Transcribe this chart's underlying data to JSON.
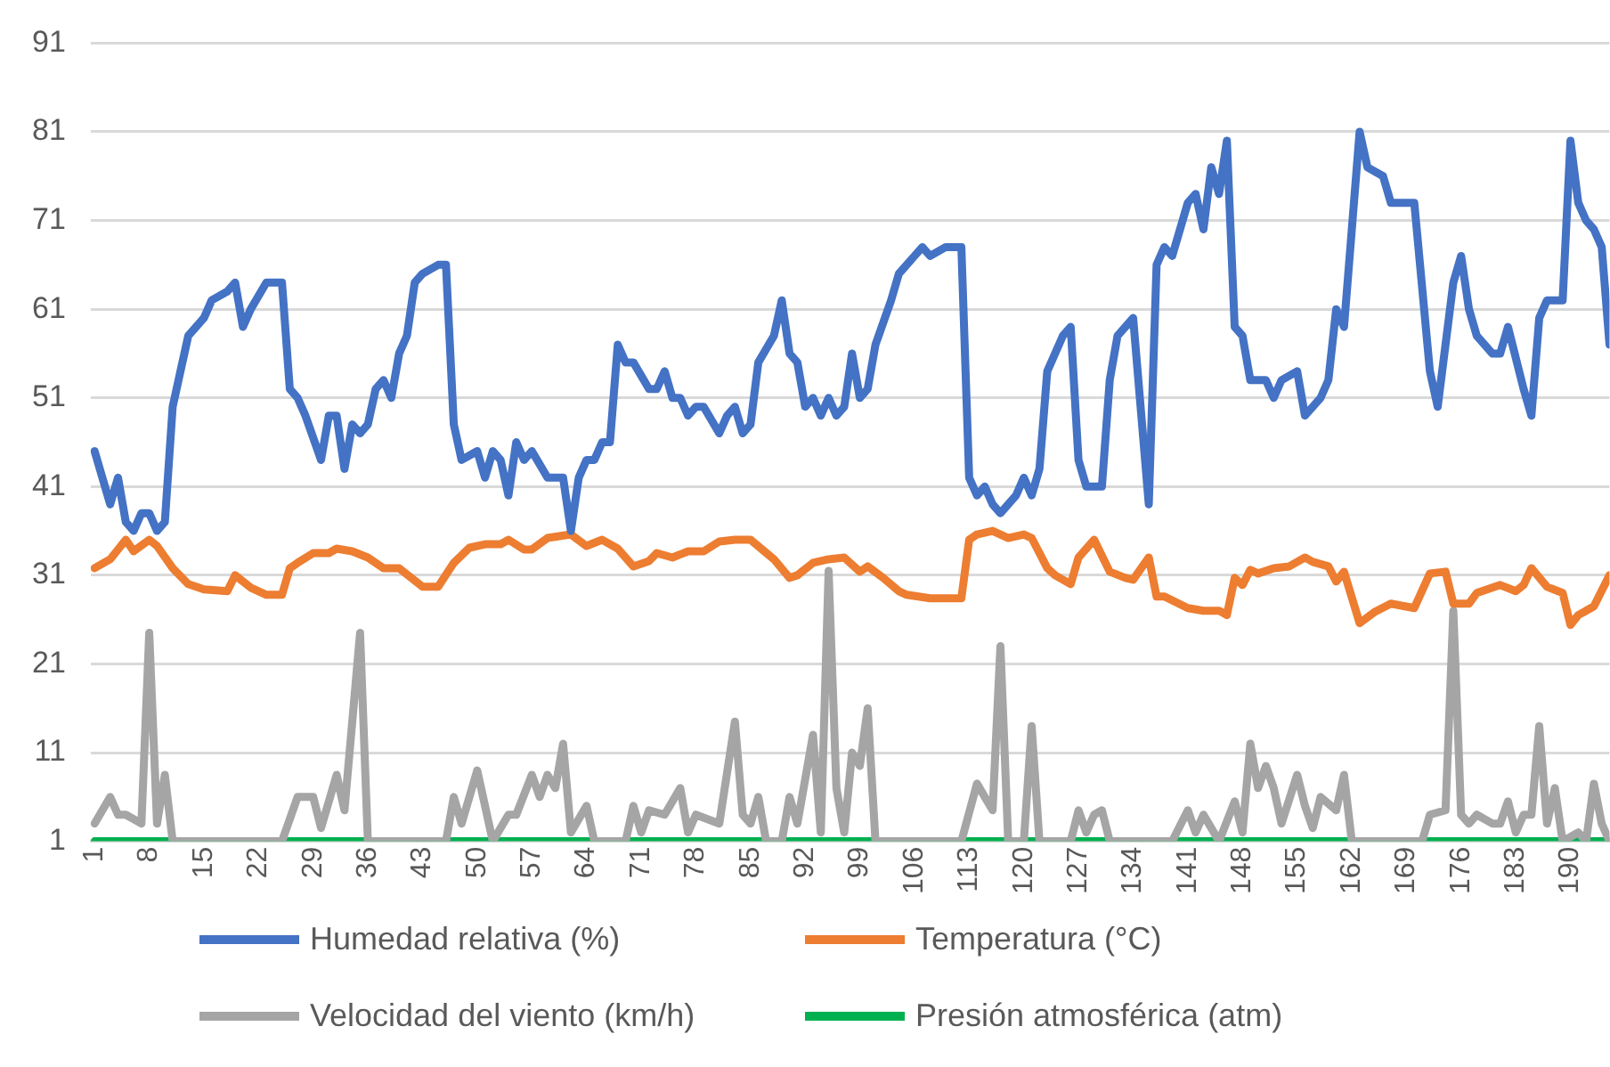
{
  "chart_data": {
    "type": "line",
    "xlim": [
      0.5,
      195
    ],
    "xticks": [
      1,
      8,
      15,
      22,
      29,
      36,
      43,
      50,
      57,
      64,
      71,
      78,
      85,
      92,
      99,
      106,
      113,
      120,
      127,
      134,
      141,
      148,
      155,
      162,
      169,
      176,
      183,
      190
    ],
    "ylim": [
      1,
      91
    ],
    "yticks": [
      1,
      11,
      21,
      31,
      41,
      51,
      61,
      71,
      81,
      91
    ],
    "grid": "y",
    "legend": "bottom",
    "marker": "none",
    "line_style": "solid",
    "series": [
      {
        "name": "Humedad relativa (%)",
        "color": "#4472c4",
        "x": [
          1,
          3,
          4,
          5,
          6,
          7,
          8,
          9,
          10,
          11,
          12,
          13,
          15,
          16,
          18,
          19,
          20,
          21,
          23,
          25,
          26,
          27,
          28,
          30,
          31,
          32,
          33,
          34,
          35,
          36,
          37,
          38,
          39,
          40,
          41,
          42,
          43,
          45,
          46,
          47,
          48,
          50,
          51,
          52,
          53,
          54,
          55,
          56,
          57,
          59,
          61,
          62,
          63,
          64,
          65,
          66,
          67,
          68,
          69,
          70,
          72,
          73,
          74,
          75,
          76,
          77,
          78,
          79,
          81,
          82,
          83,
          84,
          85,
          86,
          88,
          89,
          90,
          91,
          92,
          93,
          94,
          95,
          96,
          97,
          98,
          99,
          100,
          101,
          103,
          104,
          106,
          107,
          108,
          110,
          112,
          113,
          114,
          115,
          116,
          117,
          119,
          120,
          121,
          122,
          123,
          125,
          126,
          127,
          128,
          130,
          131,
          132,
          134,
          136,
          137,
          138,
          139,
          141,
          142,
          143,
          144,
          145,
          146,
          147,
          148,
          149,
          151,
          152,
          153,
          155,
          156,
          158,
          159,
          160,
          161,
          163,
          164,
          166,
          167,
          170,
          172,
          173,
          175,
          176,
          177,
          178,
          180,
          181,
          182,
          184,
          185,
          186,
          187,
          189,
          190,
          191,
          192,
          193,
          194,
          195
        ],
        "values": [
          45,
          39,
          42,
          37,
          36,
          38,
          38,
          36,
          37,
          50,
          54,
          58,
          60,
          62,
          63,
          64,
          59,
          61,
          64,
          64,
          52,
          51,
          49,
          44,
          49,
          49,
          43,
          48,
          47,
          48,
          52,
          53,
          51,
          56,
          58,
          64,
          65,
          66,
          66,
          48,
          44,
          45,
          42,
          45,
          44,
          40,
          46,
          44,
          45,
          42,
          42,
          36,
          42,
          44,
          44,
          46,
          46,
          57,
          55,
          55,
          52,
          52,
          54,
          51,
          51,
          49,
          50,
          50,
          47,
          49,
          50,
          47,
          48,
          55,
          58,
          62,
          56,
          55,
          50,
          51,
          49,
          51,
          49,
          50,
          56,
          51,
          52,
          57,
          62,
          65,
          67,
          68,
          67,
          68,
          68,
          42,
          40,
          41,
          39,
          38,
          40,
          42,
          40,
          43,
          54,
          58,
          59,
          44,
          41,
          41,
          53,
          58,
          60,
          39,
          66,
          68,
          67,
          73,
          74,
          70,
          77,
          74,
          80,
          59,
          58,
          53,
          53,
          51,
          53,
          54,
          49,
          51,
          53,
          61,
          59,
          81,
          77,
          76,
          73,
          73,
          54,
          50,
          64,
          67,
          61,
          58,
          56,
          56,
          59,
          52,
          49,
          60,
          62,
          62,
          80,
          73,
          71,
          70,
          68,
          57
        ]
      },
      {
        "name": "Temperatura (°C)",
        "color": "#ed7d31",
        "x": [
          1,
          3,
          5,
          6,
          8,
          9,
          11,
          13,
          15,
          18,
          19,
          21,
          23,
          25,
          26,
          27,
          29,
          31,
          32,
          34,
          36,
          38,
          40,
          43,
          45,
          47,
          49,
          51,
          53,
          54,
          56,
          57,
          59,
          62,
          64,
          66,
          68,
          70,
          72,
          73,
          75,
          77,
          79,
          81,
          83,
          85,
          88,
          90,
          91,
          93,
          95,
          97,
          99,
          100,
          102,
          104,
          105,
          108,
          112,
          113,
          114,
          116,
          118,
          120,
          121,
          123,
          124,
          126,
          127,
          129,
          131,
          133,
          134,
          136,
          137,
          138,
          141,
          143,
          145,
          146,
          147,
          148,
          149,
          150,
          152,
          154,
          156,
          157,
          159,
          160,
          161,
          163,
          165,
          167,
          170,
          172,
          174,
          175,
          177,
          178,
          181,
          183,
          184,
          185,
          187,
          189,
          190,
          191,
          193,
          195
        ],
        "values": [
          31.8,
          32.8,
          35,
          33.7,
          35,
          34.3,
          31.8,
          30,
          29.4,
          29.2,
          31,
          29.6,
          28.8,
          28.8,
          31.8,
          32.4,
          33.5,
          33.5,
          34,
          33.7,
          33,
          31.8,
          31.8,
          29.7,
          29.7,
          32.4,
          34.1,
          34.5,
          34.5,
          35,
          33.9,
          33.9,
          35.2,
          35.6,
          34.3,
          35,
          34,
          32,
          32.6,
          33.5,
          33,
          33.7,
          33.7,
          34.8,
          35,
          35,
          32.8,
          30.7,
          31,
          32.4,
          32.8,
          33,
          31.4,
          32,
          30.7,
          29.2,
          28.8,
          28.4,
          28.4,
          35,
          35.6,
          36,
          35.2,
          35.6,
          35.2,
          31.8,
          31,
          30,
          33,
          35,
          31.4,
          30.7,
          30.5,
          33,
          28.6,
          28.6,
          27.3,
          27,
          27,
          26.5,
          30.7,
          29.9,
          31.6,
          31.2,
          31.8,
          32,
          33,
          32.5,
          32,
          30.3,
          31.4,
          25.6,
          26.9,
          27.8,
          27.3,
          31.2,
          31.4,
          27.8,
          27.8,
          29,
          29.9,
          29.2,
          29.9,
          31.8,
          29.7,
          29,
          25.4,
          26.5,
          27.5,
          31
        ]
      },
      {
        "name": "Velocidad del viento (km/h)",
        "color": "#a5a5a5",
        "x": [
          1,
          3,
          4,
          5,
          7,
          8,
          9,
          10,
          11,
          25,
          27,
          29,
          30,
          32,
          33,
          35,
          36,
          46,
          47,
          48,
          50,
          52,
          54,
          55,
          57,
          58,
          59,
          60,
          61,
          62,
          64,
          65,
          69,
          70,
          71,
          72,
          74,
          76,
          77,
          78,
          81,
          83,
          84,
          85,
          86,
          87,
          89,
          90,
          91,
          93,
          94,
          95,
          96,
          97,
          98,
          99,
          100,
          101,
          112,
          114,
          116,
          117,
          118,
          120,
          121,
          122,
          126,
          127,
          128,
          129,
          130,
          131,
          139,
          141,
          142,
          143,
          145,
          147,
          148,
          149,
          150,
          151,
          152,
          153,
          155,
          156,
          157,
          158,
          160,
          161,
          162,
          171,
          172,
          174,
          175,
          176,
          177,
          178,
          180,
          181,
          182,
          183,
          184,
          185,
          186,
          187,
          188,
          189,
          191,
          192,
          193,
          194,
          195
        ],
        "values": [
          3,
          6,
          4,
          4,
          3,
          24.5,
          3,
          8.5,
          1,
          1,
          6,
          6,
          2.5,
          8.5,
          4.5,
          24.5,
          1,
          1,
          6,
          3,
          9,
          1,
          4,
          4,
          8.5,
          6,
          8.5,
          7,
          12,
          2,
          5,
          1,
          1,
          5,
          2,
          4.5,
          4,
          7,
          2,
          4,
          3,
          14.5,
          4,
          3,
          6,
          1,
          1,
          6,
          3,
          13,
          2,
          31.5,
          7,
          2,
          11,
          9.5,
          16,
          1,
          1,
          7.5,
          4.5,
          23,
          1,
          1,
          14,
          1,
          1,
          4.5,
          2,
          4,
          4.5,
          1,
          1,
          4.5,
          2,
          4,
          1,
          5.5,
          2,
          12,
          7,
          9.5,
          7,
          3,
          8.5,
          5,
          2.5,
          6,
          4.5,
          8.5,
          1,
          1,
          4,
          4.5,
          27,
          4,
          3,
          4,
          3,
          3,
          5.5,
          2,
          4,
          4,
          14,
          3,
          7,
          1,
          2,
          1,
          7.5,
          3,
          1
        ]
      },
      {
        "name": "Presión atmosférica (atm)",
        "color": "#00b050",
        "x": [
          1,
          195
        ],
        "values": [
          1,
          1
        ]
      }
    ]
  }
}
